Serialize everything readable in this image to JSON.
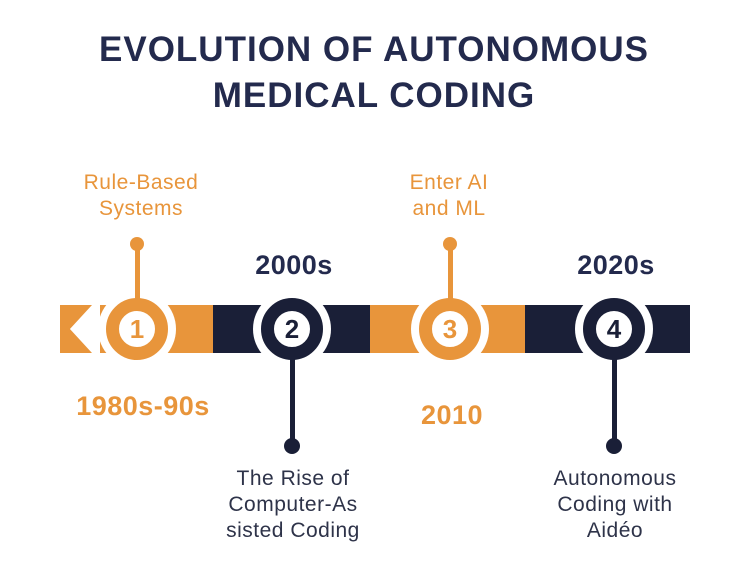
{
  "title": {
    "line1": "EVOLUTION OF AUTONOMOUS",
    "line2": "MEDICAL CODING"
  },
  "colors": {
    "orange": "#E8953B",
    "navy": "#1A1F37",
    "navy_text": "#232A4D",
    "label_navy": "#2E3349",
    "background": "#FFFFFF"
  },
  "timeline": {
    "milestones": [
      {
        "number": "1",
        "era": "1980s-90s",
        "label_lines": [
          "Rule-Based",
          "Systems"
        ],
        "theme": "orange",
        "label_position": "above",
        "era_position": "below"
      },
      {
        "number": "2",
        "era": "2000s",
        "label_lines": [
          "The Rise of",
          "Computer-As",
          "sisted Coding"
        ],
        "theme": "navy",
        "label_position": "below",
        "era_position": "above"
      },
      {
        "number": "3",
        "era": "2010",
        "label_lines": [
          "Enter AI",
          "and ML"
        ],
        "theme": "orange",
        "label_position": "above",
        "era_position": "below"
      },
      {
        "number": "4",
        "era": "2020s",
        "label_lines": [
          "Autonomous",
          "Coding with",
          "Aidéo"
        ],
        "theme": "navy",
        "label_position": "below",
        "era_position": "above"
      }
    ]
  }
}
